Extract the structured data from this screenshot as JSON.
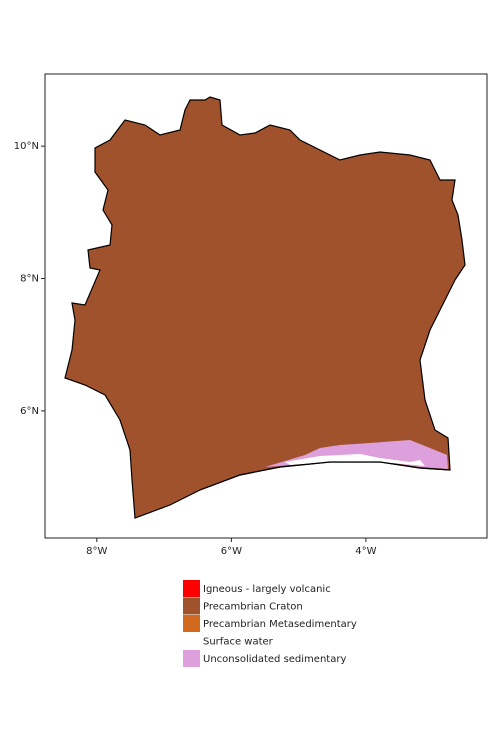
{
  "map": {
    "xlim": [
      -8.77,
      -2.2
    ],
    "ylim": [
      4.08,
      11.09
    ],
    "xticks": [
      {
        "value": -8,
        "label": "8°W"
      },
      {
        "value": -6,
        "label": "6°W"
      },
      {
        "value": -4,
        "label": "4°W"
      }
    ],
    "yticks": [
      {
        "value": 10,
        "label": "10°N"
      },
      {
        "value": 8,
        "label": "8°N"
      },
      {
        "value": 6,
        "label": "6°N"
      }
    ],
    "legend": [
      {
        "name": "Igneous - largely volcanic",
        "color": "#ff0000"
      },
      {
        "name": "Precambrian Craton",
        "color": "#a0522d"
      },
      {
        "name": "Precambrian Metasedimentary",
        "color": "#d2691e"
      },
      {
        "name": "Surface water",
        "color": "#ffffff"
      },
      {
        "name": "Unconsolidated sedimentary",
        "color": "#dda0dd"
      }
    ]
  }
}
